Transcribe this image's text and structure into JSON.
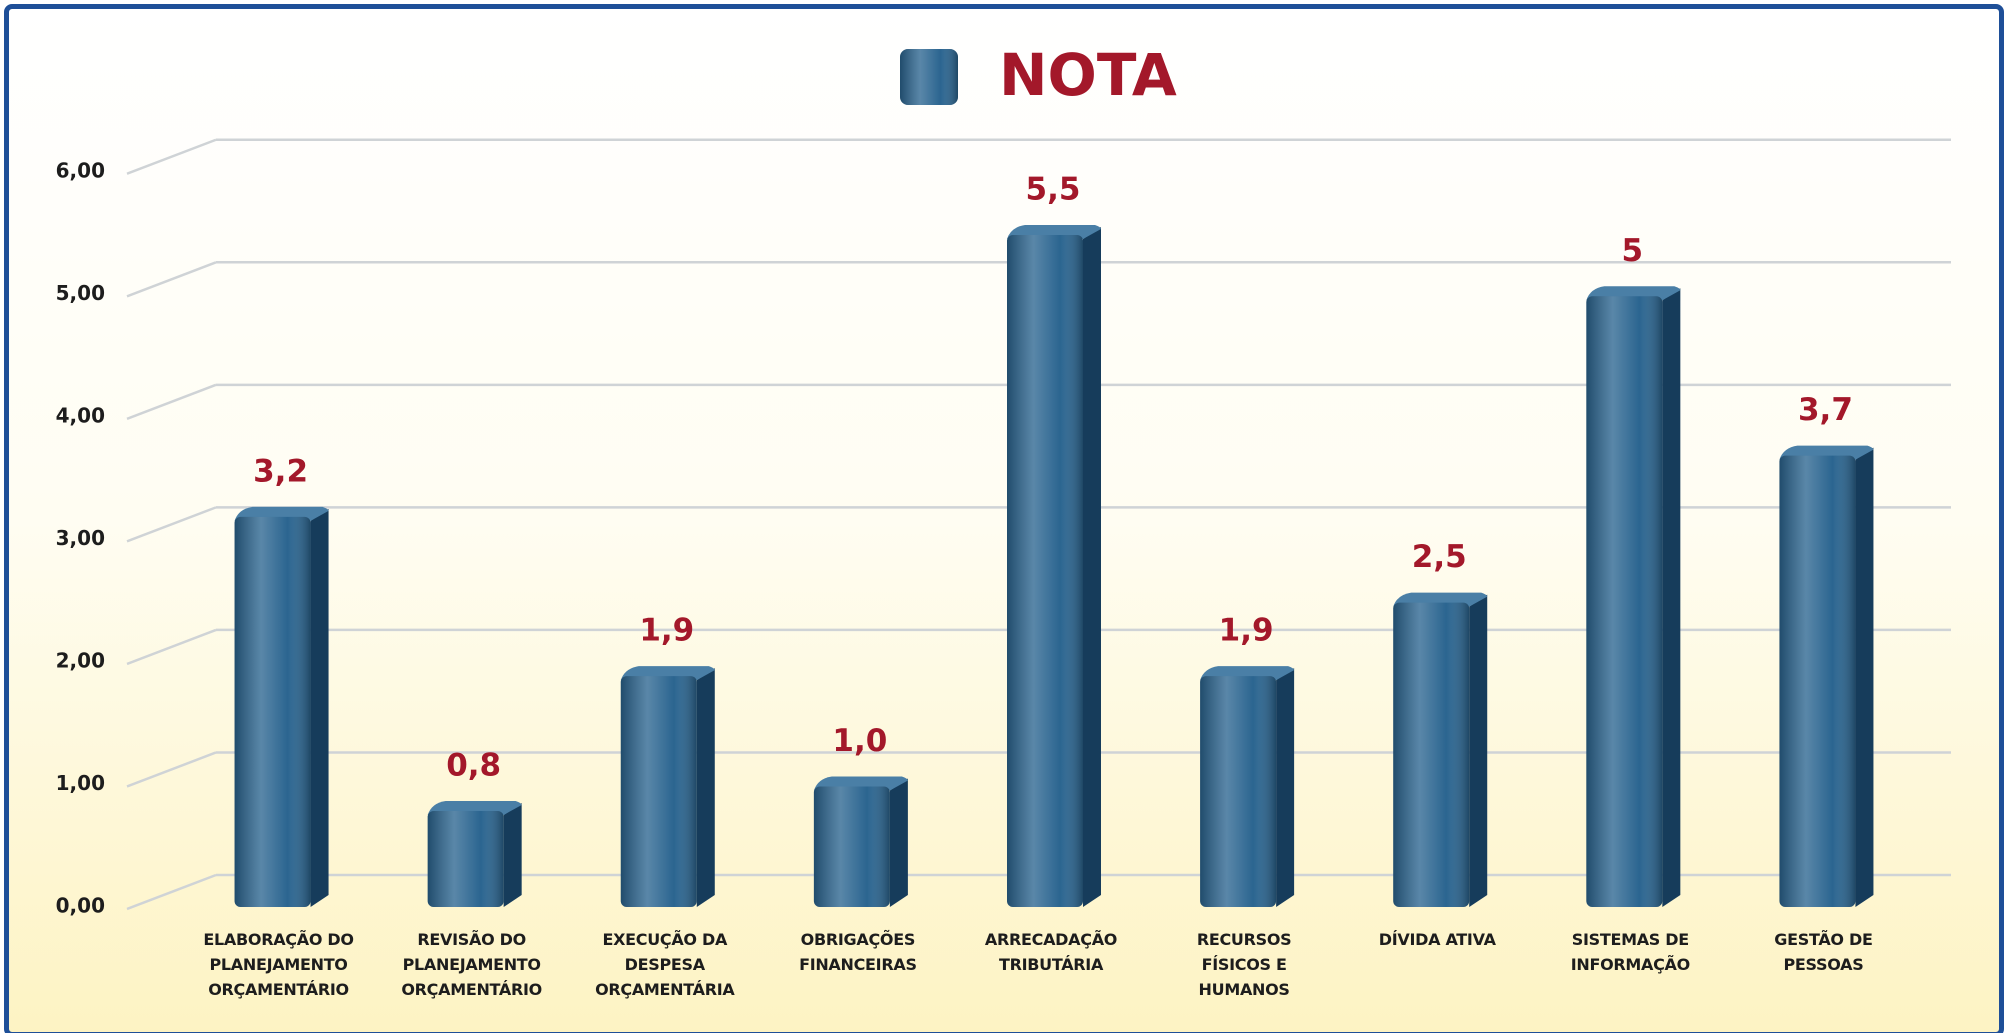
{
  "chart_data": {
    "type": "bar",
    "categories": [
      "ELABORAÇÃO DO\nPLANEJAMENTO\nORÇAMENTÁRIO",
      "REVISÃO DO\nPLANEJAMENTO\nORÇAMENTÁRIO",
      "EXECUÇÃO DA\nDESPESA\nORÇAMENTÁRIA",
      "OBRIGAÇÕES\nFINANCEIRAS",
      "ARRECADAÇÃO\nTRIBUTÁRIA",
      "RECURSOS\nFÍSICOS E\nHUMANOS",
      "DÍVIDA ATIVA",
      "SISTEMAS DE\nINFORMAÇÃO",
      "GESTÃO DE\nPESSOAS"
    ],
    "series": [
      {
        "name": "NOTA",
        "color": "#2b6590",
        "values": [
          3.2,
          0.8,
          1.9,
          1.0,
          5.5,
          1.9,
          2.5,
          5,
          3.7
        ],
        "value_labels": [
          "3,2",
          "0,8",
          "1,9",
          "1,0",
          "5,5",
          "1,9",
          "2,5",
          "5",
          "3,7"
        ]
      }
    ],
    "ylim": [
      0,
      6.3
    ],
    "yticks": [
      {
        "value": 0,
        "label": "0,00"
      },
      {
        "value": 1,
        "label": "1,00"
      },
      {
        "value": 2,
        "label": "2,00"
      },
      {
        "value": 3,
        "label": "3,00"
      },
      {
        "value": 4,
        "label": "4,00"
      },
      {
        "value": 5,
        "label": "5,00"
      },
      {
        "value": 6,
        "label": "6,00"
      }
    ],
    "grid": true,
    "legend": "top"
  }
}
